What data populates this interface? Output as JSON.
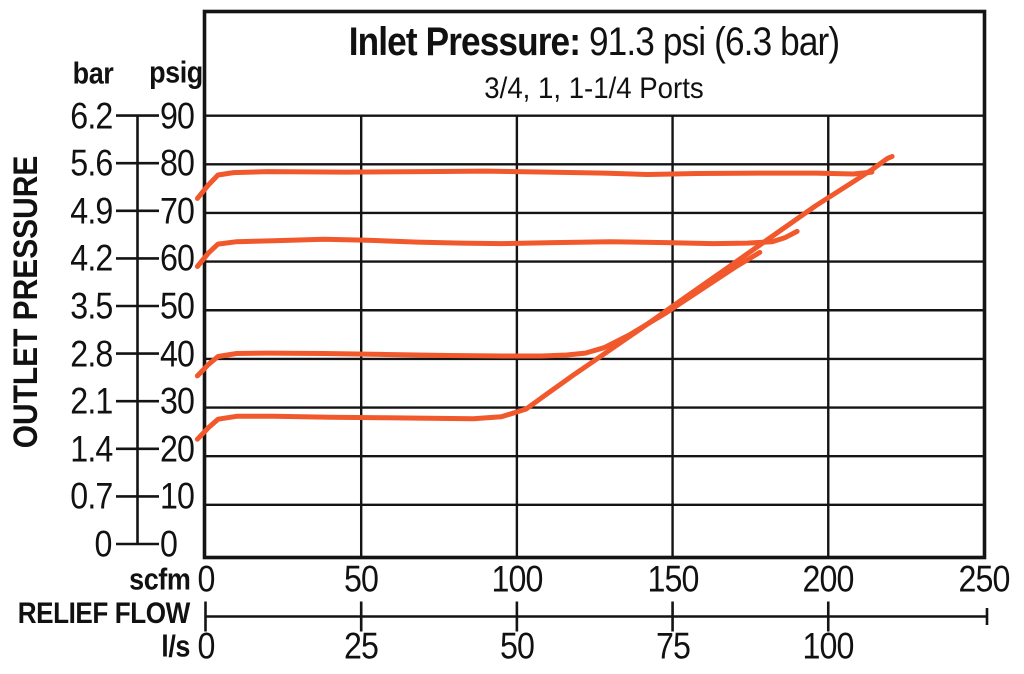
{
  "title": {
    "prefix": "Inlet Pressure:",
    "value": " 91.3 psi (6.3 bar)",
    "subtitle": "3/4, 1, 1-1/4 Ports"
  },
  "y_axis": {
    "title": "OUTLET PRESSURE",
    "left_unit": "bar",
    "right_unit": "psig",
    "bar_ticks": [
      "6.2",
      "5.6",
      "4.9",
      "4.2",
      "3.5",
      "2.8",
      "2.1",
      "1.4",
      "0.7",
      "0"
    ],
    "psig_ticks": [
      "90",
      "80",
      "70",
      "60",
      "50",
      "40",
      "30",
      "20",
      "10",
      "0"
    ]
  },
  "x_axis": {
    "title": "RELIEF FLOW",
    "top_unit": "scfm",
    "bottom_unit": "l/s",
    "scfm_ticks": [
      "0",
      "50",
      "100",
      "150",
      "200",
      "250"
    ],
    "ls_ticks": [
      "0",
      "25",
      "50",
      "75",
      "100"
    ]
  },
  "colors": {
    "curve": "#F1582C",
    "line": "#141414",
    "text": "#111111",
    "background": "#FFFFFF"
  },
  "chart_data": {
    "type": "line",
    "title": "Inlet Pressure: 91.3 psi (6.3 bar)",
    "subtitle": "3/4, 1, 1-1/4 Ports",
    "xlabel": "RELIEF FLOW",
    "ylabel": "OUTLET PRESSURE",
    "x_units": {
      "top": "scfm",
      "bottom": "l/s"
    },
    "y_units": {
      "left": "bar",
      "right": "psig"
    },
    "xlim": [
      0,
      250
    ],
    "ylim": [
      0,
      90
    ],
    "grid": true,
    "x_gridlines_scfm": [
      50,
      100,
      150,
      200
    ],
    "y_gridlines_psig": [
      10,
      20,
      30,
      40,
      50,
      60,
      70,
      80,
      90
    ],
    "bar_scale_pairs": [
      [
        6.2,
        90
      ],
      [
        5.6,
        80
      ],
      [
        4.9,
        70
      ],
      [
        4.2,
        60
      ],
      [
        3.5,
        50
      ],
      [
        2.8,
        40
      ],
      [
        2.1,
        30
      ],
      [
        1.4,
        20
      ],
      [
        0.7,
        10
      ],
      [
        0,
        0
      ]
    ],
    "ls_ticks_at_scfm": [
      0,
      50,
      100,
      150,
      200
    ],
    "series": [
      {
        "name": "curve-set-78-psig",
        "x_unit": "scfm",
        "y_unit": "psig",
        "points": [
          [
            -2.6,
            73
          ],
          [
            1,
            75.8
          ],
          [
            4,
            77.8
          ],
          [
            9,
            78.3
          ],
          [
            20,
            78.5
          ],
          [
            45,
            78.4
          ],
          [
            70,
            78.5
          ],
          [
            90,
            78.6
          ],
          [
            110,
            78.4
          ],
          [
            128,
            78.2
          ],
          [
            142,
            77.9
          ],
          [
            158,
            78.1
          ],
          [
            178,
            78.2
          ],
          [
            196,
            78.2
          ],
          [
            208,
            78.0
          ],
          [
            214,
            78.4
          ]
        ]
      },
      {
        "name": "curve-set-64-psig",
        "x_unit": "scfm",
        "y_unit": "psig",
        "points": [
          [
            -2.6,
            59
          ],
          [
            1,
            61.8
          ],
          [
            4,
            63.6
          ],
          [
            10,
            64.1
          ],
          [
            22,
            64.3
          ],
          [
            38,
            64.6
          ],
          [
            52,
            64.4
          ],
          [
            68,
            64.0
          ],
          [
            82,
            63.8
          ],
          [
            95,
            63.7
          ],
          [
            112,
            63.9
          ],
          [
            130,
            64.1
          ],
          [
            148,
            63.9
          ],
          [
            163,
            63.7
          ],
          [
            174,
            63.8
          ],
          [
            182,
            64.1
          ],
          [
            186,
            64.9
          ],
          [
            190,
            66.2
          ]
        ]
      },
      {
        "name": "curve-set-41-psig",
        "x_unit": "scfm",
        "y_unit": "psig",
        "points": [
          [
            -2.6,
            36.5
          ],
          [
            1,
            38.9
          ],
          [
            4,
            40.5
          ],
          [
            10,
            41.1
          ],
          [
            20,
            41.2
          ],
          [
            38,
            41.1
          ],
          [
            58,
            40.9
          ],
          [
            78,
            40.7
          ],
          [
            95,
            40.6
          ],
          [
            108,
            40.6
          ],
          [
            116,
            40.8
          ],
          [
            122,
            41.2
          ],
          [
            128,
            42.3
          ],
          [
            136,
            44.9
          ],
          [
            148,
            49.5
          ],
          [
            160,
            54.6
          ],
          [
            170,
            58.8
          ],
          [
            178,
            61.9
          ]
        ]
      },
      {
        "name": "curve-set-28-psig",
        "x_unit": "scfm",
        "y_unit": "psig",
        "points": [
          [
            -2.6,
            23.5
          ],
          [
            1,
            25.9
          ],
          [
            4,
            27.6
          ],
          [
            10,
            28.2
          ],
          [
            22,
            28.2
          ],
          [
            40,
            28.0
          ],
          [
            58,
            27.9
          ],
          [
            72,
            27.8
          ],
          [
            86,
            27.7
          ],
          [
            95,
            28.1
          ],
          [
            103,
            29.7
          ],
          [
            109,
            32.5
          ],
          [
            118,
            36.6
          ],
          [
            128,
            41.0
          ],
          [
            140,
            46.3
          ],
          [
            154,
            52.6
          ],
          [
            168,
            58.9
          ],
          [
            182,
            65.2
          ],
          [
            196,
            71.5
          ],
          [
            208,
            76.4
          ],
          [
            214,
            78.9
          ],
          [
            219,
            81.2
          ],
          [
            220.5,
            81.6
          ]
        ]
      }
    ]
  }
}
